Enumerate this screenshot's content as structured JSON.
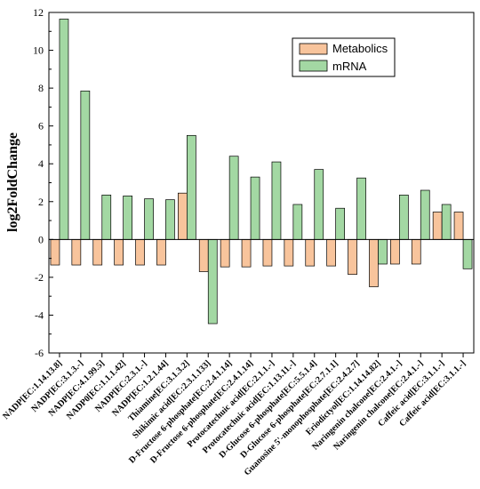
{
  "chart_data": {
    "type": "bar",
    "title": "",
    "xlabel": "",
    "ylabel": "log2FoldChange",
    "ylim": [
      -6,
      12
    ],
    "yticks": [
      -6,
      -4,
      -2,
      0,
      2,
      4,
      6,
      8,
      10,
      12
    ],
    "legend_position": "top-right",
    "grid": false,
    "categories": [
      "NADP[EC:1.14.13.8]",
      "NADP[EC:3.1.3.-]",
      "NADP[EC:4.1.99.5]",
      "NADP0[EC:1.1.1.42]",
      "NADP[EC:2.3.1.-]",
      "NADP[EC:1.2.1.44]",
      "Thiamine[EC:3.1.3.2]",
      "Shikimic acid[EC:2.3.1.133]",
      "D-Fructose 6-phosphate[EC:2.4.1.14]",
      "D-Fructose 6-phosphate[EC:2.4.1.14]",
      "Protocatechuic acid[EC:2.1.1.-]",
      "Protocatechuic acid[EC:1.13.11.-]",
      "D-Glucose 6-phosphate[EC:5.5.1.4]",
      "D-Glucose 6-phosphate[EC:2.7.1.1]",
      "Guanosine 5'-monophosphate[EC:2.4.2.7]",
      "Eriodictyol[EC:1.14.14.82]",
      "Naringenin chalcone[EC:2.4.1.-]",
      "Naringenin chalcone[EC:2.4.1.-]",
      "Caffeic acid[EC:3.1.1.-]",
      "Caffeic acid[EC:3.1.1.-]"
    ],
    "series": [
      {
        "name": "Metabolics",
        "color": "#f8c49c",
        "values": [
          -1.35,
          -1.35,
          -1.35,
          -1.35,
          -1.35,
          -1.35,
          2.45,
          -1.7,
          -1.45,
          -1.45,
          -1.4,
          -1.4,
          -1.4,
          -1.4,
          -1.85,
          -2.5,
          -1.3,
          -1.3,
          1.45,
          1.45
        ]
      },
      {
        "name": "mRNA",
        "color": "#a3d8a3",
        "values": [
          11.65,
          7.85,
          2.35,
          2.3,
          2.15,
          2.1,
          5.5,
          -4.45,
          4.4,
          3.3,
          4.1,
          1.85,
          3.7,
          1.65,
          3.25,
          -1.3,
          2.35,
          2.6,
          1.85,
          -1.55
        ]
      }
    ]
  }
}
